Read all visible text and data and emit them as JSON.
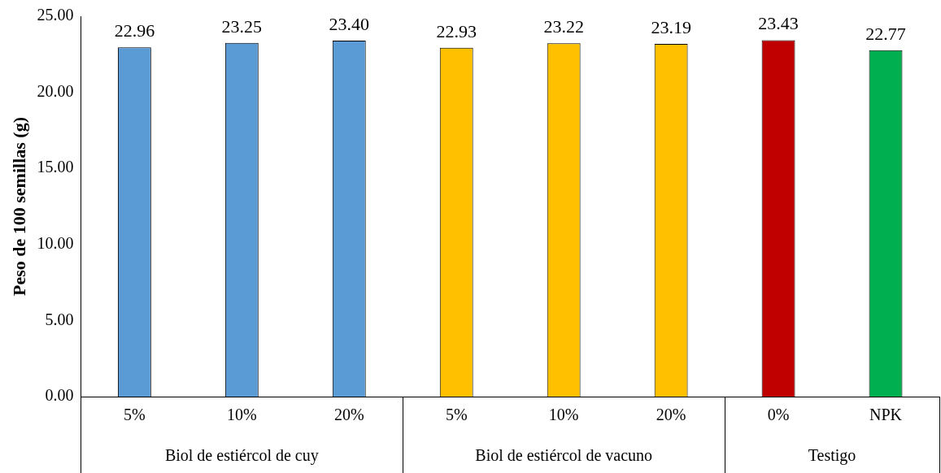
{
  "chart_data": {
    "type": "bar",
    "ylabel": "Peso de 100 semillas (g)",
    "categories": [
      "5%",
      "10%",
      "20%",
      "5%",
      "10%",
      "20%",
      "0%",
      "NPK"
    ],
    "series": [
      {
        "color": "#5b9bd5",
        "values": [
          22.96,
          23.25,
          23.4,
          null,
          null,
          null,
          null,
          null
        ],
        "value_labels": [
          "22.96",
          "23.25",
          "23.40",
          null,
          null,
          null,
          null,
          null
        ]
      },
      {
        "color": "#ffc000",
        "values": [
          null,
          null,
          null,
          22.93,
          23.22,
          23.19,
          null,
          null
        ],
        "value_labels": [
          null,
          null,
          null,
          "22.93",
          "23.22",
          "23.19",
          null,
          null
        ]
      },
      {
        "colors": [
          null,
          null,
          null,
          null,
          null,
          null,
          "#c00000",
          "#00b050"
        ],
        "values": [
          null,
          null,
          null,
          null,
          null,
          null,
          23.43,
          22.77
        ],
        "value_labels": [
          null,
          null,
          null,
          null,
          null,
          null,
          "23.43",
          "22.77"
        ]
      }
    ],
    "ylim": [
      0,
      25
    ],
    "yticks": [
      {
        "value": 0,
        "label": "0.00"
      },
      {
        "value": 5,
        "label": "5.00"
      },
      {
        "value": 10,
        "label": "10.00"
      },
      {
        "value": 15,
        "label": "15.00"
      },
      {
        "value": 20,
        "label": "20.00"
      },
      {
        "value": 25,
        "label": "25.00"
      }
    ],
    "annotations": [
      "Biol de estiércol de cuy",
      "Biol de estiércol de vacuno",
      "Testigo"
    ],
    "grid": false,
    "legend": false
  }
}
